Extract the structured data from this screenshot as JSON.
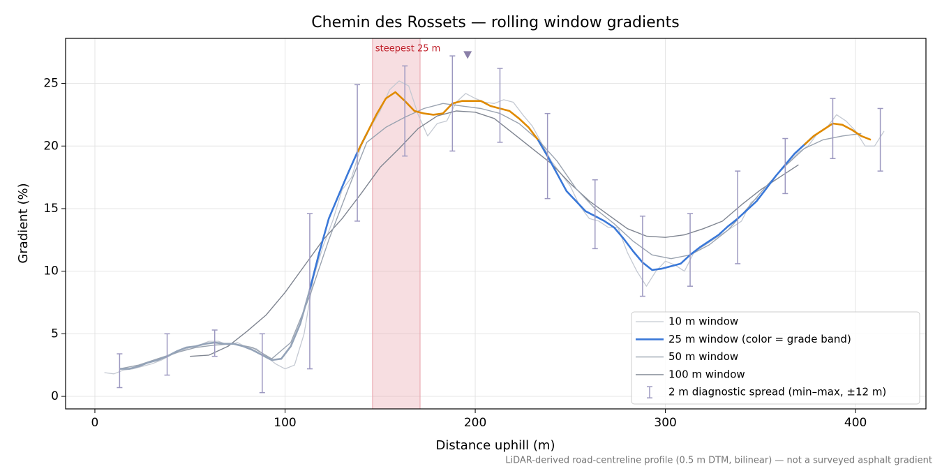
{
  "chart_data": {
    "type": "line",
    "title": "Chemin des Rossets — rolling window gradients",
    "x_label": "Distance uphill (m)",
    "y_label": "Gradient (%)",
    "footnote": "LiDAR-derived road-centreline profile (0.5 m DTM, bilinear) — not a surveyed asphalt gradient",
    "xlim": [
      -15.4,
      437
    ],
    "ylim": [
      -1.0,
      28.6
    ],
    "xticks": [
      0,
      100,
      200,
      300,
      400
    ],
    "yticks": [
      0,
      5,
      10,
      15,
      20,
      25
    ],
    "grid": true,
    "legend": "lower right",
    "highlight": {
      "label": "steepest 25 m",
      "from": 146,
      "to": 171,
      "color": "#e8a0a8"
    },
    "peak_marker": {
      "x": 196,
      "y": 27.3,
      "color": "#8a7fa8"
    },
    "series": [
      {
        "name": "10 m window",
        "color": "#c4c9d2",
        "width": 1.3,
        "x": [
          5,
          10,
          15,
          20,
          25,
          30,
          35,
          40,
          45,
          50,
          55,
          60,
          65,
          70,
          75,
          80,
          85,
          90,
          95,
          100,
          105,
          110,
          115,
          120,
          125,
          130,
          135,
          140,
          145,
          150,
          155,
          160,
          165,
          170,
          175,
          180,
          185,
          190,
          195,
          200,
          205,
          210,
          215,
          220,
          225,
          230,
          235,
          240,
          245,
          250,
          255,
          260,
          265,
          270,
          275,
          280,
          285,
          290,
          295,
          300,
          305,
          310,
          315,
          320,
          325,
          330,
          335,
          340,
          345,
          350,
          355,
          360,
          365,
          370,
          375,
          380,
          385,
          390,
          395,
          400,
          405,
          410,
          415
        ],
        "values": [
          1.9,
          1.8,
          2.1,
          2.2,
          2.4,
          2.6,
          2.9,
          3.3,
          3.6,
          3.9,
          4.1,
          4.4,
          4.4,
          4.1,
          4.3,
          3.9,
          3.8,
          3.2,
          2.6,
          2.2,
          2.5,
          5.0,
          9.5,
          12.0,
          14.0,
          16.5,
          17.5,
          20.0,
          21.5,
          22.8,
          24.5,
          25.2,
          24.8,
          22.5,
          20.8,
          21.8,
          22.0,
          23.5,
          24.2,
          23.8,
          23.5,
          23.4,
          23.7,
          23.5,
          22.5,
          21.6,
          20.2,
          18.8,
          17.8,
          16.8,
          15.2,
          14.2,
          14.0,
          13.5,
          13.5,
          11.5,
          10.0,
          8.8,
          10.0,
          10.8,
          10.5,
          10.0,
          11.5,
          12.0,
          12.5,
          13.0,
          13.5,
          14.0,
          15.5,
          16.0,
          17.0,
          18.0,
          18.7,
          19.5,
          20.0,
          21.0,
          21.5,
          22.5,
          22.0,
          21.2,
          20.0,
          20.0,
          21.2
        ]
      },
      {
        "name": "25 m window (color = grade band)",
        "color": "#3a78d8",
        "width": 2.6,
        "grade_band_breaks": [
          8,
          20
        ],
        "grade_band_colors": [
          "#94a3b8",
          "#3a78d8",
          "#e08a00"
        ],
        "x": [
          13,
          18,
          23,
          28,
          33,
          38,
          43,
          48,
          53,
          58,
          63,
          68,
          73,
          78,
          83,
          88,
          93,
          98,
          103,
          108,
          113,
          118,
          123,
          128,
          133,
          138,
          143,
          148,
          153,
          158,
          163,
          168,
          173,
          178,
          183,
          188,
          193,
          198,
          203,
          208,
          213,
          218,
          223,
          228,
          233,
          238,
          243,
          248,
          253,
          258,
          263,
          268,
          273,
          278,
          283,
          288,
          293,
          298,
          303,
          308,
          313,
          318,
          323,
          328,
          333,
          338,
          343,
          348,
          353,
          358,
          363,
          368,
          373,
          378,
          383,
          388,
          393,
          398,
          403,
          408
        ],
        "values": [
          2.2,
          2.2,
          2.4,
          2.7,
          2.9,
          3.2,
          3.6,
          3.9,
          4.0,
          4.2,
          4.3,
          4.2,
          4.2,
          4.0,
          3.7,
          3.3,
          2.9,
          3.0,
          4.0,
          5.8,
          8.5,
          11.5,
          14.2,
          16.0,
          17.8,
          19.5,
          21.0,
          22.5,
          23.8,
          24.3,
          23.6,
          22.8,
          22.6,
          22.5,
          22.6,
          23.4,
          23.6,
          23.6,
          23.6,
          23.2,
          23.0,
          22.8,
          22.2,
          21.5,
          20.5,
          19.2,
          17.8,
          16.4,
          15.6,
          14.8,
          14.4,
          14.0,
          13.5,
          12.6,
          11.6,
          10.7,
          10.1,
          10.2,
          10.4,
          10.6,
          11.3,
          11.9,
          12.4,
          12.9,
          13.6,
          14.2,
          14.9,
          15.6,
          16.6,
          17.6,
          18.5,
          19.4,
          20.1,
          20.8,
          21.3,
          21.8,
          21.7,
          21.3,
          20.8,
          20.5
        ]
      },
      {
        "name": "50 m window",
        "color": "#9aa3b0",
        "width": 1.4,
        "x": [
          13,
          23,
          33,
          43,
          53,
          63,
          73,
          83,
          93,
          103,
          113,
          123,
          133,
          143,
          153,
          163,
          173,
          183,
          193,
          203,
          213,
          223,
          233,
          243,
          253,
          263,
          273,
          283,
          293,
          303,
          313,
          323,
          333,
          343,
          353,
          363,
          373,
          383,
          393,
          403
        ],
        "values": [
          2.2,
          2.5,
          3.0,
          3.5,
          3.9,
          4.1,
          4.2,
          3.9,
          3.0,
          4.3,
          8.0,
          12.5,
          16.5,
          20.3,
          21.5,
          22.3,
          23.0,
          23.4,
          23.2,
          23.0,
          22.6,
          21.8,
          20.5,
          18.8,
          16.6,
          15.0,
          13.8,
          12.4,
          11.3,
          11.0,
          11.3,
          12.1,
          13.3,
          15.0,
          16.8,
          18.4,
          19.8,
          20.5,
          20.8,
          21.0
        ]
      },
      {
        "name": "100 m window",
        "color": "#7f8591",
        "width": 1.4,
        "x": [
          50,
          60,
          70,
          80,
          90,
          100,
          110,
          120,
          130,
          140,
          150,
          160,
          170,
          180,
          190,
          200,
          210,
          220,
          230,
          240,
          250,
          260,
          270,
          280,
          290,
          300,
          310,
          320,
          330,
          340,
          350,
          360,
          370
        ],
        "values": [
          3.2,
          3.3,
          4.0,
          5.2,
          6.5,
          8.3,
          10.4,
          12.5,
          14.2,
          16.2,
          18.3,
          19.8,
          21.4,
          22.4,
          22.8,
          22.7,
          22.2,
          21.0,
          19.8,
          18.6,
          17.0,
          15.6,
          14.5,
          13.4,
          12.8,
          12.7,
          12.9,
          13.4,
          14.0,
          15.3,
          16.5,
          17.5,
          18.5
        ]
      }
    ],
    "spread": {
      "name": "2 m diagnostic spread (min–max, ±12 m)",
      "color": "#9c98c0",
      "x": [
        13,
        38,
        63,
        88,
        113,
        138,
        163,
        188,
        213,
        238,
        263,
        288,
        313,
        338,
        363,
        388,
        413
      ],
      "low": [
        0.7,
        1.7,
        3.2,
        0.3,
        2.2,
        14.0,
        19.2,
        19.6,
        20.3,
        15.8,
        11.8,
        8.0,
        8.8,
        10.6,
        16.2,
        19.0,
        18.0
      ],
      "high": [
        3.4,
        5.0,
        5.3,
        5.0,
        14.6,
        24.9,
        26.4,
        27.2,
        26.2,
        22.6,
        17.3,
        14.4,
        14.6,
        18.0,
        20.6,
        23.8,
        23.0
      ]
    }
  }
}
